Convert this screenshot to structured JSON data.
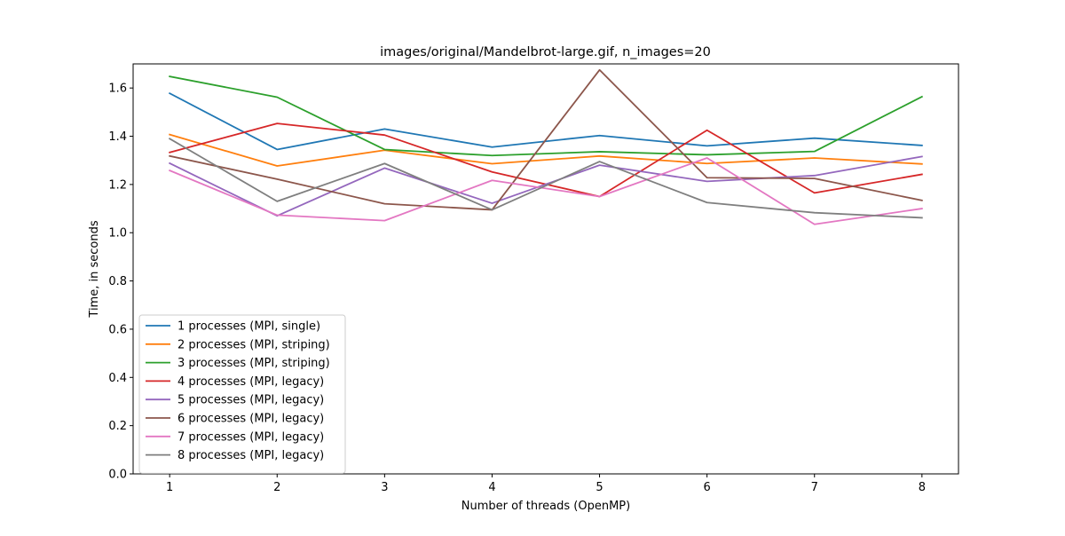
{
  "chart_data": {
    "type": "line",
    "title": "images/original/Mandelbrot-large.gif, n_images=20",
    "xlabel": "Number of threads (OpenMP)",
    "ylabel": "Time, in seconds",
    "x": [
      1,
      2,
      3,
      4,
      5,
      6,
      7,
      8
    ],
    "x_ticks": [
      "1",
      "2",
      "3",
      "4",
      "5",
      "6",
      "7",
      "8"
    ],
    "y_ticks": [
      "0.0",
      "0.2",
      "0.4",
      "0.6",
      "0.8",
      "1.0",
      "1.2",
      "1.4",
      "1.6"
    ],
    "xlim": [
      0.66,
      8.34
    ],
    "ylim": [
      0,
      1.7
    ],
    "grid": false,
    "legend_position": "lower-left",
    "series": [
      {
        "name": "1 processes (MPI, single)",
        "color": "#1f77b4",
        "values": [
          1.578,
          1.345,
          1.43,
          1.355,
          1.403,
          1.36,
          1.392,
          1.362
        ]
      },
      {
        "name": "2 processes (MPI, striping)",
        "color": "#ff7f0e",
        "values": [
          1.407,
          1.277,
          1.342,
          1.286,
          1.318,
          1.287,
          1.31,
          1.285
        ]
      },
      {
        "name": "3 processes (MPI, striping)",
        "color": "#2ca02c",
        "values": [
          1.648,
          1.562,
          1.345,
          1.32,
          1.336,
          1.323,
          1.337,
          1.564
        ]
      },
      {
        "name": "4 processes (MPI, legacy)",
        "color": "#d62728",
        "values": [
          1.333,
          1.453,
          1.405,
          1.252,
          1.15,
          1.425,
          1.165,
          1.242
        ]
      },
      {
        "name": "5 processes (MPI, legacy)",
        "color": "#9467bd",
        "values": [
          1.288,
          1.07,
          1.268,
          1.122,
          1.28,
          1.213,
          1.237,
          1.316
        ]
      },
      {
        "name": "6 processes (MPI, legacy)",
        "color": "#8c564b",
        "values": [
          1.318,
          1.222,
          1.12,
          1.095,
          1.675,
          1.228,
          1.225,
          1.134
        ]
      },
      {
        "name": "7 processes (MPI, legacy)",
        "color": "#e377c2",
        "values": [
          1.258,
          1.073,
          1.05,
          1.217,
          1.15,
          1.31,
          1.035,
          1.1
        ]
      },
      {
        "name": "8 processes (MPI, legacy)",
        "color": "#7f7f7f",
        "values": [
          1.39,
          1.13,
          1.287,
          1.095,
          1.295,
          1.125,
          1.083,
          1.062
        ]
      }
    ]
  }
}
